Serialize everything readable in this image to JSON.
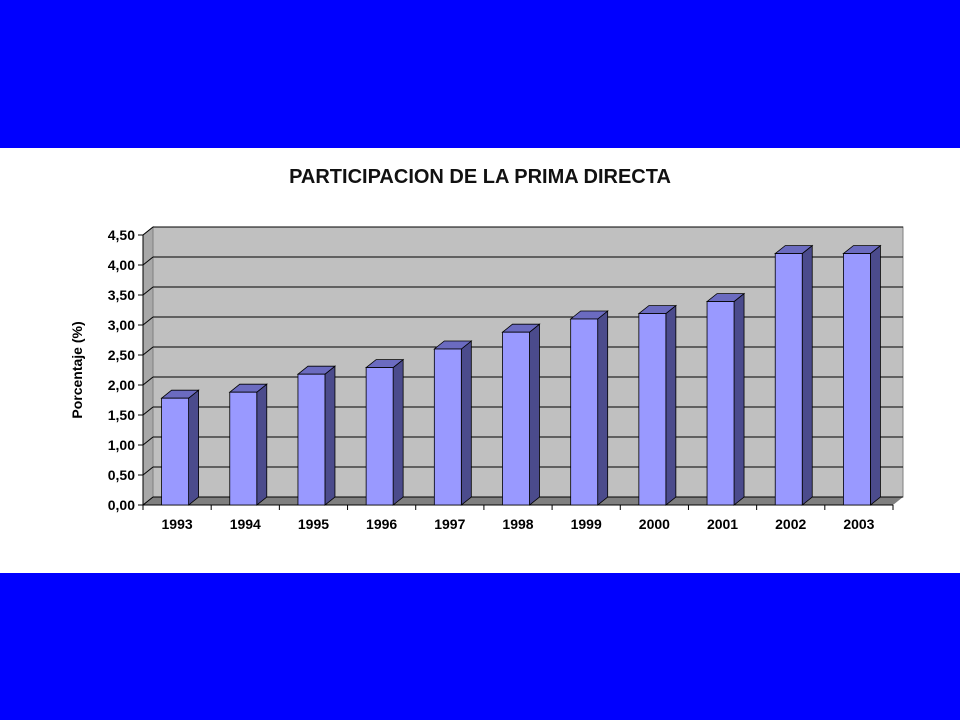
{
  "slide": {
    "colors": {
      "band": "#0000ff",
      "panel": "#ffffff",
      "plot_back": "#c0c0c0",
      "bar_front": "#9999ff",
      "bar_side": "#4b4b8c",
      "bar_top": "#6b6bc0"
    }
  },
  "chart_data": {
    "type": "bar",
    "title": "PARTICIPACION DE LA PRIMA DIRECTA",
    "xlabel": "",
    "ylabel": "Porcentaje (%)",
    "categories": [
      "1993",
      "1994",
      "1995",
      "1996",
      "1997",
      "1998",
      "1999",
      "2000",
      "2001",
      "2002",
      "2003"
    ],
    "values": [
      1.78,
      1.88,
      2.18,
      2.29,
      2.6,
      2.88,
      3.1,
      3.19,
      3.39,
      4.19,
      4.19
    ],
    "ylim": [
      0,
      4.5
    ],
    "yticks": [
      "0,00",
      "0,50",
      "1,00",
      "1,50",
      "2,00",
      "2,50",
      "3,00",
      "3,50",
      "4,00",
      "4,50"
    ],
    "grid": true,
    "legend": "none",
    "style": "3d-column"
  }
}
